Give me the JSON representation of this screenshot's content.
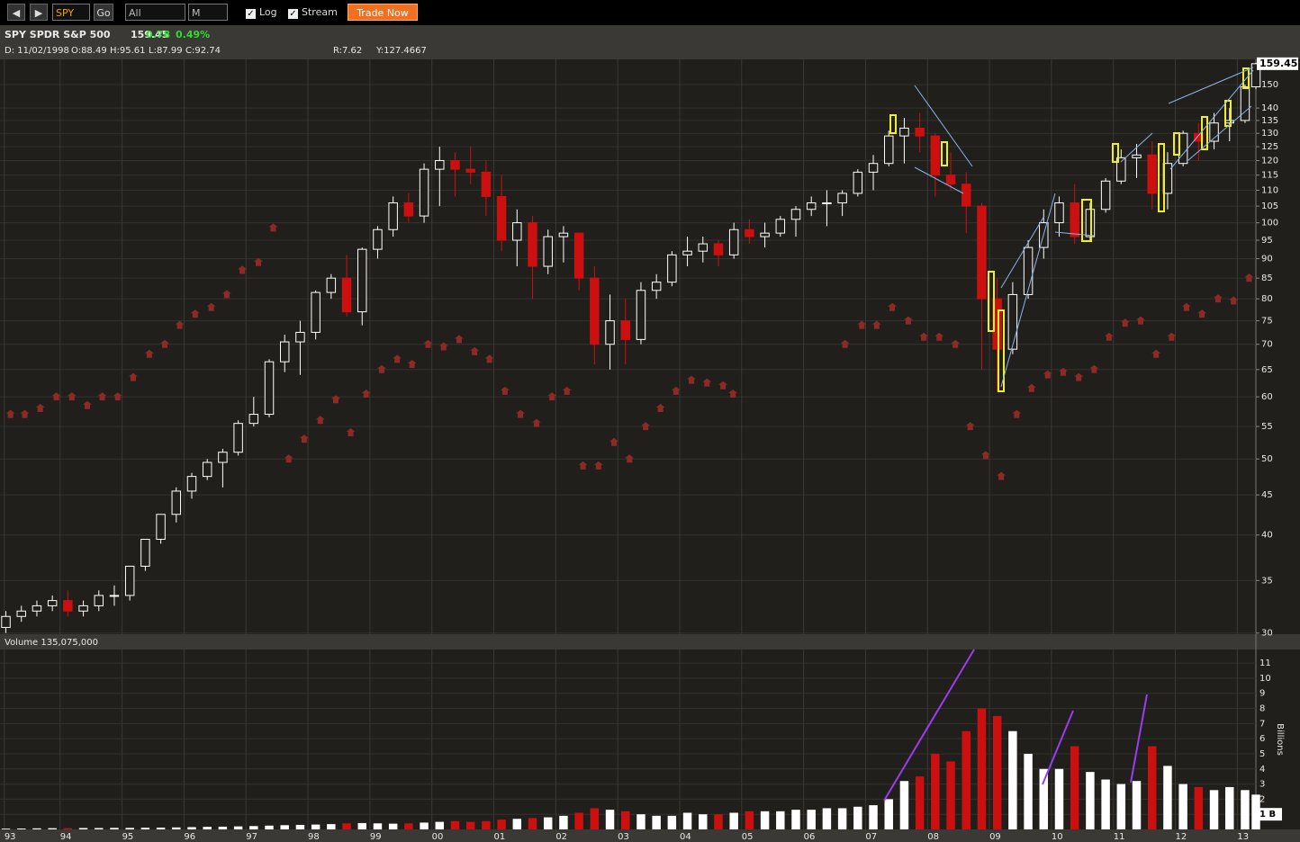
{
  "toolbar": {
    "symbol": "SPY",
    "go": "Go",
    "range": "All",
    "period": "M",
    "log": "Log",
    "stream": "Stream",
    "trade": "Trade Now"
  },
  "header": {
    "name": "SPY SPDR S&P 500",
    "change": "0.78",
    "change_pct": "0.49%",
    "date": "D: 11/02/1998",
    "open": "O:88.49",
    "high": "H:95.61",
    "low": "L:87.99",
    "close": "C:92.74",
    "r": "R:7.62",
    "y": "Y:127.4667"
  },
  "chart_data": [
    {
      "type": "candlestick",
      "log": true,
      "grid": true,
      "up_color": "#ffffff",
      "down_color": "#cc1010",
      "xlim": [
        1993.03,
        2013.3
      ],
      "ylim": [
        29.9,
        161.5
      ],
      "yticks": [
        30,
        35,
        40,
        45,
        50,
        55,
        60,
        65,
        70,
        75,
        80,
        85,
        90,
        95,
        100,
        105,
        110,
        115,
        120,
        125,
        130,
        135,
        140,
        150
      ],
      "x": [
        1993.125,
        1993.375,
        1993.625,
        1993.875,
        1994.125,
        1994.375,
        1994.625,
        1994.875,
        1995.125,
        1995.375,
        1995.625,
        1995.875,
        1996.125,
        1996.375,
        1996.625,
        1996.875,
        1997.125,
        1997.375,
        1997.625,
        1997.875,
        1998.125,
        1998.375,
        1998.625,
        1998.875,
        1999.125,
        1999.375,
        1999.625,
        1999.875,
        2000.125,
        2000.375,
        2000.625,
        2000.875,
        2001.125,
        2001.375,
        2001.625,
        2001.875,
        2002.125,
        2002.375,
        2002.625,
        2002.875,
        2003.125,
        2003.375,
        2003.625,
        2003.875,
        2004.125,
        2004.375,
        2004.625,
        2004.875,
        2005.125,
        2005.375,
        2005.625,
        2005.875,
        2006.125,
        2006.375,
        2006.625,
        2006.875,
        2007.125,
        2007.375,
        2007.625,
        2007.875,
        2008.125,
        2008.375,
        2008.625,
        2008.875,
        2009.125,
        2009.375,
        2009.625,
        2009.875,
        2010.125,
        2010.375,
        2010.625,
        2010.875,
        2011.125,
        2011.375,
        2011.625,
        2011.875,
        2012.125,
        2012.375,
        2012.625,
        2012.875,
        2013.125,
        2013.3
      ],
      "open": [
        30.5,
        31.5,
        32,
        32.5,
        33,
        32,
        32.5,
        33.5,
        33.5,
        36.5,
        39.5,
        42.5,
        45.5,
        47.5,
        49.5,
        51,
        55.5,
        57,
        66.5,
        70.5,
        72.5,
        81.5,
        85,
        77,
        92.5,
        98,
        106,
        102,
        117,
        120,
        117,
        116,
        108,
        95,
        100,
        88,
        96,
        97,
        85,
        70,
        75,
        71,
        82,
        84,
        91,
        92,
        94,
        91,
        98,
        96,
        97,
        101,
        104,
        106,
        106,
        109,
        116,
        119,
        129,
        132,
        129,
        115,
        112,
        105,
        80,
        69,
        81,
        93,
        100,
        106,
        96,
        104,
        113,
        121,
        122,
        109,
        119,
        130,
        127,
        134,
        135,
        149
      ],
      "high": [
        32,
        32.5,
        33,
        33.5,
        34,
        33,
        34,
        34.5,
        36.5,
        39.5,
        42.5,
        46,
        48,
        50,
        51.5,
        56,
        60,
        67,
        72,
        75,
        82,
        86,
        91,
        93,
        99,
        108,
        109,
        119,
        125,
        123,
        125,
        120,
        115,
        104,
        102,
        98,
        99,
        97,
        88,
        81,
        80,
        84,
        86,
        92,
        96,
        96,
        95,
        100,
        101,
        100,
        102,
        105,
        108,
        110,
        110,
        117,
        122,
        131,
        136,
        138,
        130,
        123,
        116,
        106,
        85,
        84,
        95,
        104,
        108,
        112,
        106,
        114,
        124,
        126,
        127,
        123,
        131,
        134,
        138,
        140,
        150,
        159.9
      ],
      "low": [
        30,
        31,
        31.5,
        32,
        31.5,
        31.5,
        32,
        32.5,
        33,
        36,
        39,
        41.5,
        44.5,
        47,
        46,
        50.5,
        55,
        56.5,
        64.5,
        64,
        71,
        80,
        76,
        74,
        90,
        96,
        100,
        100,
        105,
        108,
        112,
        102,
        92,
        88,
        80,
        86,
        89,
        82,
        66,
        65,
        66,
        70,
        80,
        83,
        88,
        89,
        88,
        90,
        94,
        93,
        96,
        96,
        102,
        99,
        102,
        108,
        110,
        118,
        119,
        123,
        108,
        110,
        97,
        65,
        61,
        68,
        80,
        90,
        96,
        94,
        95,
        103,
        112,
        114,
        104,
        104,
        118,
        120,
        124,
        127,
        134,
        148
      ],
      "close": [
        31.5,
        32,
        32.5,
        33,
        32,
        32.5,
        33.5,
        33.5,
        36.5,
        39.5,
        42.5,
        45.5,
        47.5,
        49.5,
        51,
        55.5,
        57,
        66.5,
        70.5,
        72.5,
        81.5,
        85,
        77,
        92.5,
        98,
        106,
        102,
        117,
        120,
        117,
        116,
        108,
        95,
        100,
        88,
        96,
        97,
        85,
        70,
        75,
        71,
        82,
        84,
        91,
        92,
        94,
        91,
        98,
        96,
        97,
        101,
        104,
        106,
        106,
        109,
        116,
        119,
        129,
        132,
        129,
        115,
        112,
        105,
        80,
        69,
        81,
        93,
        100,
        106,
        96,
        104,
        113,
        121,
        122,
        109,
        119,
        130,
        127,
        134,
        135,
        149,
        159.45
      ],
      "markers": {
        "color": "#8e2a26",
        "x": [
          1993.2,
          1993.43,
          1993.68,
          1993.94,
          1994.19,
          1994.44,
          1994.68,
          1994.93,
          1995.18,
          1995.44,
          1995.69,
          1995.93,
          1996.18,
          1996.44,
          1996.69,
          1996.94,
          1997.2,
          1997.44,
          1997.69,
          1997.94,
          1998.2,
          1998.45,
          1998.69,
          1998.94,
          1999.19,
          1999.44,
          1999.68,
          1999.94,
          2000.19,
          2000.44,
          2000.69,
          2000.93,
          2001.18,
          2001.43,
          2001.69,
          2001.94,
          2002.18,
          2002.44,
          2002.69,
          2002.94,
          2003.19,
          2003.45,
          2003.69,
          2003.94,
          2004.19,
          2004.44,
          2004.7,
          2004.86,
          2006.67,
          2006.94,
          2007.18,
          2007.43,
          2007.69,
          2007.94,
          2008.19,
          2008.45,
          2008.69,
          2008.94,
          2009.19,
          2009.44,
          2009.68,
          2009.94,
          2010.19,
          2010.44,
          2010.69,
          2010.93,
          2011.19,
          2011.44,
          2011.69,
          2011.94,
          2012.18,
          2012.43,
          2012.69,
          2012.94,
          2013.19
        ],
        "values": [
          57,
          57,
          58,
          60,
          60,
          58.5,
          60,
          60,
          63.5,
          68,
          70,
          74,
          76.5,
          78,
          81,
          87,
          89,
          98.5,
          50,
          53,
          56,
          59.5,
          54,
          60.5,
          65,
          67,
          66,
          70,
          69.5,
          71,
          68.5,
          67,
          61,
          57,
          55.5,
          60,
          61,
          49,
          49,
          52.5,
          50,
          55,
          58,
          61,
          63,
          62.5,
          62,
          60.5,
          70,
          74,
          74,
          78,
          75,
          71.5,
          71.5,
          70,
          55,
          50.5,
          47.5,
          57,
          61.5,
          64,
          64.5,
          63.5,
          65,
          71.5,
          74.5,
          75,
          68,
          71.5,
          78,
          76.5,
          80,
          79.5,
          85
        ]
      }
    },
    {
      "type": "bar",
      "title": "Volume 135,075,000",
      "ylabel": "Billions",
      "xlim": [
        1993.03,
        2013.3
      ],
      "ylim": [
        0,
        11.9
      ],
      "yticks": [
        {
          "value": 1,
          "label": "1 B"
        },
        2,
        3,
        4,
        5,
        6,
        7,
        8,
        9,
        10,
        11
      ],
      "xticks": [
        {
          "value": 1993.1,
          "label": "93"
        },
        {
          "value": 1994,
          "label": "94"
        },
        {
          "value": 1995,
          "label": "95"
        },
        {
          "value": 1996,
          "label": "96"
        },
        {
          "value": 1997,
          "label": "97"
        },
        {
          "value": 1998,
          "label": "98"
        },
        {
          "value": 1999,
          "label": "99"
        },
        {
          "value": 2000,
          "label": "00"
        },
        {
          "value": 2001,
          "label": "01"
        },
        {
          "value": 2002,
          "label": "02"
        },
        {
          "value": 2003,
          "label": "03"
        },
        {
          "value": 2004,
          "label": "04"
        },
        {
          "value": 2005,
          "label": "05"
        },
        {
          "value": 2006,
          "label": "06"
        },
        {
          "value": 2007,
          "label": "07"
        },
        {
          "value": 2008,
          "label": "08"
        },
        {
          "value": 2009,
          "label": "09"
        },
        {
          "value": 2010,
          "label": "10"
        },
        {
          "value": 2011,
          "label": "11"
        },
        {
          "value": 2012,
          "label": "12"
        },
        {
          "value": 2013,
          "label": "13"
        }
      ],
      "values": [
        0.05,
        0.06,
        0.07,
        0.08,
        0.08,
        0.09,
        0.09,
        0.1,
        0.1,
        0.11,
        0.12,
        0.13,
        0.15,
        0.17,
        0.18,
        0.2,
        0.22,
        0.25,
        0.28,
        0.3,
        0.32,
        0.35,
        0.4,
        0.42,
        0.4,
        0.38,
        0.4,
        0.45,
        0.5,
        0.55,
        0.5,
        0.55,
        0.65,
        0.7,
        0.75,
        0.8,
        0.9,
        1.1,
        1.4,
        1.3,
        1.2,
        1.0,
        0.9,
        0.9,
        1.1,
        1.0,
        1.0,
        1.1,
        1.2,
        1.2,
        1.2,
        1.3,
        1.3,
        1.4,
        1.4,
        1.5,
        1.6,
        2.0,
        3.2,
        3.5,
        5.0,
        4.5,
        6.5,
        8.0,
        7.5,
        6.5,
        5.0,
        4.0,
        4.0,
        5.5,
        3.8,
        3.3,
        3.0,
        3.2,
        5.5,
        4.2,
        3.0,
        2.8,
        2.6,
        2.8,
        2.6,
        2.3
      ]
    }
  ]
}
